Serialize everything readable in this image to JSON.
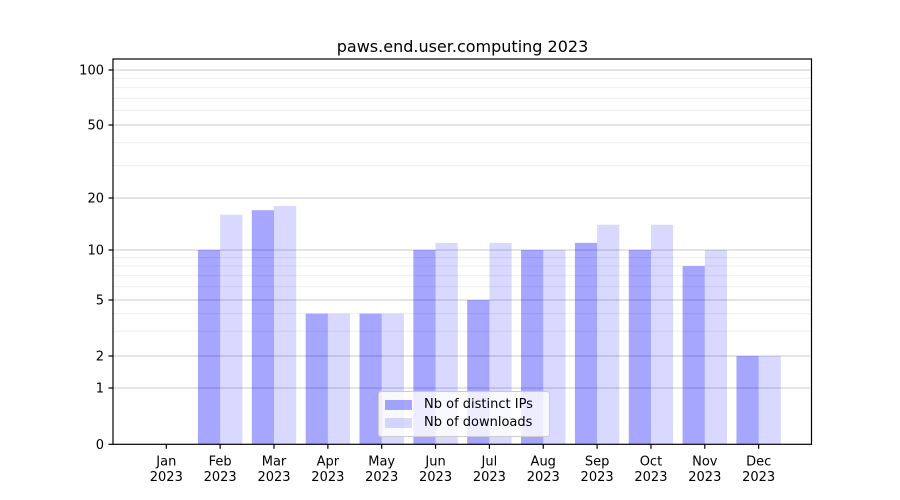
{
  "chart_data": {
    "type": "bar",
    "title": "paws.end.user.computing 2023",
    "x": {
      "months": [
        "Jan",
        "Feb",
        "Mar",
        "Apr",
        "May",
        "Jun",
        "Jul",
        "Aug",
        "Sep",
        "Oct",
        "Nov",
        "Dec"
      ],
      "year": "2023"
    },
    "y_axis": {
      "scale": "symlog",
      "ticks": [
        0,
        1,
        2,
        5,
        10,
        20,
        50,
        100
      ],
      "minor_gridlines": [
        3,
        4,
        6,
        7,
        8,
        9,
        30,
        40,
        60,
        70,
        80,
        90
      ],
      "range": [
        0,
        115
      ],
      "grid": true
    },
    "series": [
      {
        "name": "Nb of distinct IPs",
        "color": "#0000ff",
        "alpha": 0.35,
        "values": [
          0,
          10,
          17,
          4,
          4,
          10,
          5,
          10,
          11,
          10,
          8,
          2
        ]
      },
      {
        "name": "Nb of downloads",
        "color": "#0000ff",
        "alpha": 0.15,
        "values": [
          0,
          16,
          18,
          4,
          4,
          11,
          11,
          10,
          14,
          14,
          10,
          2
        ]
      }
    ],
    "legend": {
      "position": "lower-center",
      "entries": [
        "Nb of distinct IPs",
        "Nb of downloads"
      ]
    },
    "colors": {
      "bar_dark_on_white": "#a6a6ff",
      "bar_light_on_white": "#d9d9ff",
      "grid_major": "#c8c8c8",
      "grid_minor": "#ebebeb",
      "axis": "#000000",
      "legend_border": "#cccccc"
    }
  }
}
